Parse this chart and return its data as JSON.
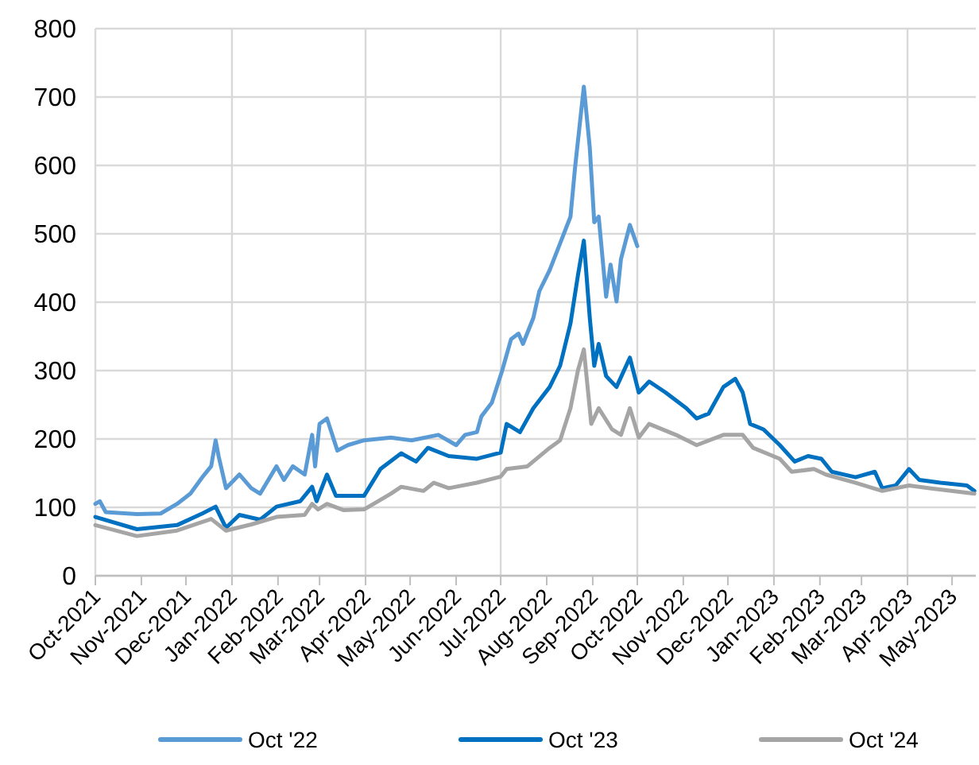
{
  "chart_data": {
    "type": "line",
    "xlim": [
      "2021-10-01",
      "2023-05-17"
    ],
    "ylim": [
      0,
      800
    ],
    "yticks": [
      0,
      100,
      200,
      300,
      400,
      500,
      600,
      700,
      800
    ],
    "xticks": [
      {
        "value": "2021-10-01",
        "label": "Oct-2021"
      },
      {
        "value": "2021-11-01",
        "label": "Nov-2021"
      },
      {
        "value": "2021-12-01",
        "label": "Dec-2021"
      },
      {
        "value": "2022-01-01",
        "label": "Jan-2022"
      },
      {
        "value": "2022-02-01",
        "label": "Feb-2022"
      },
      {
        "value": "2022-03-01",
        "label": "Mar-2022"
      },
      {
        "value": "2022-04-01",
        "label": "Apr-2022"
      },
      {
        "value": "2022-05-01",
        "label": "May-2022"
      },
      {
        "value": "2022-06-01",
        "label": "Jun-2022"
      },
      {
        "value": "2022-07-01",
        "label": "Jul-2022"
      },
      {
        "value": "2022-08-01",
        "label": "Aug-2022"
      },
      {
        "value": "2022-09-01",
        "label": "Sep-2022"
      },
      {
        "value": "2022-10-01",
        "label": "Oct-2022"
      },
      {
        "value": "2022-11-01",
        "label": "Nov-2022"
      },
      {
        "value": "2022-12-01",
        "label": "Dec-2022"
      },
      {
        "value": "2023-01-01",
        "label": "Jan-2023"
      },
      {
        "value": "2023-02-01",
        "label": "Feb-2023"
      },
      {
        "value": "2023-03-01",
        "label": "Mar-2023"
      },
      {
        "value": "2023-04-01",
        "label": "Apr-2023"
      },
      {
        "value": "2023-05-01",
        "label": "May-2023"
      }
    ],
    "grid": true,
    "legend": "bottom",
    "line_style": "solid",
    "series": [
      {
        "name": "Oct '22",
        "color": "#5b9bd5",
        "x": [
          "2021-10-01",
          "2021-10-04",
          "2021-10-08",
          "2021-10-29",
          "2021-11-14",
          "2021-11-25",
          "2021-12-04",
          "2021-12-12",
          "2021-12-18",
          "2021-12-21",
          "2021-12-23",
          "2021-12-28",
          "2022-01-06",
          "2022-01-14",
          "2022-01-20",
          "2022-01-31",
          "2022-02-05",
          "2022-02-11",
          "2022-02-19",
          "2022-02-24",
          "2022-02-26",
          "2022-03-01",
          "2022-03-06",
          "2022-03-13",
          "2022-03-20",
          "2022-03-31",
          "2022-04-18",
          "2022-05-02",
          "2022-05-20",
          "2022-06-01",
          "2022-06-07",
          "2022-06-15",
          "2022-06-18",
          "2022-06-25",
          "2022-07-02",
          "2022-07-08",
          "2022-07-13",
          "2022-07-16",
          "2022-07-23",
          "2022-07-27",
          "2022-08-03",
          "2022-08-10",
          "2022-08-17",
          "2022-08-20",
          "2022-08-26",
          "2022-08-30",
          "2022-09-02",
          "2022-09-05",
          "2022-09-10",
          "2022-09-13",
          "2022-09-17",
          "2022-09-20",
          "2022-09-26",
          "2022-10-01"
        ],
        "values": [
          105,
          109,
          93,
          90,
          91,
          105,
          120,
          144,
          160,
          198,
          175,
          128,
          148,
          128,
          120,
          160,
          140,
          160,
          148,
          206,
          160,
          222,
          230,
          183,
          191,
          198,
          202,
          198,
          206,
          191,
          206,
          210,
          233,
          253,
          300,
          346,
          354,
          339,
          377,
          416,
          447,
          486,
          525,
          595,
          715,
          626,
          517,
          525,
          408,
          455,
          401,
          463,
          513,
          482
        ]
      },
      {
        "name": "Oct '23",
        "color": "#0070c0",
        "x": [
          "2021-10-01",
          "2021-10-29",
          "2021-11-25",
          "2021-12-12",
          "2021-12-21",
          "2021-12-28",
          "2022-01-06",
          "2022-01-20",
          "2022-01-31",
          "2022-02-16",
          "2022-02-24",
          "2022-02-27",
          "2022-03-06",
          "2022-03-12",
          "2022-03-31",
          "2022-04-11",
          "2022-04-25",
          "2022-05-05",
          "2022-05-13",
          "2022-05-27",
          "2022-06-15",
          "2022-07-01",
          "2022-07-05",
          "2022-07-14",
          "2022-07-23",
          "2022-08-03",
          "2022-08-10",
          "2022-08-17",
          "2022-08-22",
          "2022-08-26",
          "2022-08-30",
          "2022-09-02",
          "2022-09-05",
          "2022-09-10",
          "2022-09-17",
          "2022-09-26",
          "2022-10-02",
          "2022-10-09",
          "2022-10-20",
          "2022-11-03",
          "2022-11-10",
          "2022-11-18",
          "2022-11-28",
          "2022-12-06",
          "2022-12-11",
          "2022-12-16",
          "2022-12-25",
          "2023-01-05",
          "2023-01-15",
          "2023-01-24",
          "2023-02-02",
          "2023-02-09",
          "2023-02-25",
          "2023-03-10",
          "2023-03-15",
          "2023-03-24",
          "2023-04-02",
          "2023-04-09",
          "2023-04-23",
          "2023-05-11",
          "2023-05-16"
        ],
        "values": [
          86,
          68,
          74,
          91,
          101,
          70,
          89,
          82,
          101,
          109,
          130,
          109,
          148,
          117,
          117,
          156,
          179,
          167,
          187,
          175,
          171,
          180,
          222,
          210,
          245,
          276,
          307,
          369,
          439,
          490,
          377,
          307,
          339,
          292,
          276,
          319,
          268,
          284,
          268,
          245,
          230,
          237,
          276,
          288,
          268,
          222,
          214,
          191,
          167,
          175,
          171,
          152,
          144,
          152,
          128,
          132,
          156,
          140,
          136,
          132,
          124
        ]
      },
      {
        "name": "Oct '24",
        "color": "#a5a5a5",
        "x": [
          "2021-10-01",
          "2021-10-29",
          "2021-11-25",
          "2021-12-18",
          "2021-12-28",
          "2022-01-14",
          "2022-01-31",
          "2022-02-19",
          "2022-02-24",
          "2022-02-28",
          "2022-03-06",
          "2022-03-17",
          "2022-03-31",
          "2022-04-18",
          "2022-04-25",
          "2022-05-10",
          "2022-05-17",
          "2022-05-27",
          "2022-06-15",
          "2022-07-01",
          "2022-07-05",
          "2022-07-19",
          "2022-08-03",
          "2022-08-10",
          "2022-08-17",
          "2022-08-22",
          "2022-08-26",
          "2022-08-31",
          "2022-09-05",
          "2022-09-14",
          "2022-09-20",
          "2022-09-26",
          "2022-10-02",
          "2022-10-09",
          "2022-10-27",
          "2022-11-10",
          "2022-11-28",
          "2022-12-11",
          "2022-12-18",
          "2023-01-05",
          "2023-01-13",
          "2023-01-28",
          "2023-02-05",
          "2023-02-25",
          "2023-03-15",
          "2023-04-02",
          "2023-04-16",
          "2023-05-16"
        ],
        "values": [
          74,
          58,
          66,
          83,
          66,
          75,
          86,
          89,
          105,
          97,
          105,
          96,
          97,
          120,
          130,
          124,
          136,
          128,
          136,
          145,
          156,
          160,
          187,
          198,
          245,
          300,
          331,
          222,
          245,
          214,
          206,
          245,
          202,
          222,
          206,
          191,
          206,
          206,
          187,
          171,
          152,
          156,
          148,
          136,
          124,
          132,
          128,
          120
        ]
      }
    ]
  }
}
